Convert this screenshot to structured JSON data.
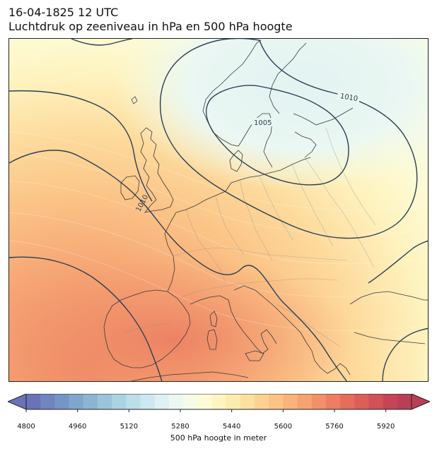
{
  "title": {
    "line1": "16-04-1825 12 UTC",
    "line2": "Luchtdruk op zeeniveau in hPa en 500 hPa hoogte"
  },
  "map": {
    "region": "Europe",
    "isobar_labels": [
      "1005",
      "1010",
      "1010"
    ],
    "isobar_color": "#2a3f55",
    "coast_color": "#3a3a3a",
    "border_color": "#8a8a8a"
  },
  "colorbar": {
    "label": "500 hPa hoogte in meter",
    "min": 4800,
    "max": 6000,
    "step": 40,
    "ticks": [
      "4800",
      "4960",
      "5120",
      "5280",
      "5440",
      "5600",
      "5760",
      "5920"
    ],
    "extend": "both",
    "colors": [
      "#6a72b8",
      "#6e85bf",
      "#7595c6",
      "#7fa6cd",
      "#8bb5d3",
      "#9ac4da",
      "#aad2e2",
      "#bcdeea",
      "#cde8f0",
      "#dff1f3",
      "#edf7f1",
      "#f6fbe6",
      "#fdfbd4",
      "#fef5c2",
      "#feebaf",
      "#fddf9f",
      "#fdd292",
      "#fbc386",
      "#f9b37b",
      "#f6a271",
      "#f29069",
      "#ed7e62",
      "#e66c5c",
      "#dd5d59",
      "#d25057",
      "#c54555",
      "#b83f55"
    ]
  }
}
